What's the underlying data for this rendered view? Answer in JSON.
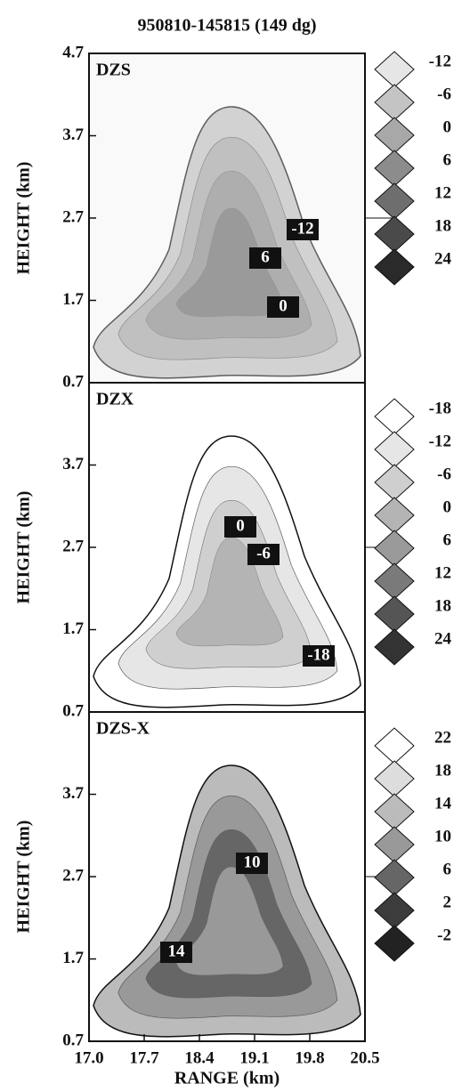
{
  "header": {
    "title": "950810-145815 (149 dg)"
  },
  "chart_data": [
    {
      "type": "contour",
      "title": "DZS",
      "ylabel": "HEIGHT (km)",
      "ylim": [
        0.7,
        4.7
      ],
      "yticks": [
        0.7,
        1.7,
        2.7,
        3.7,
        4.7
      ],
      "levels": [
        -12,
        -6,
        0,
        6,
        12,
        18,
        24
      ],
      "level_colors": [
        "#e6e6e6",
        "#c4c4c4",
        "#a8a8a8",
        "#8c8c8c",
        "#6e6e6e",
        "#4a4a4a",
        "#2a2a2a"
      ],
      "contour_labels": [
        -12,
        6,
        0
      ]
    },
    {
      "type": "contour",
      "title": "DZX",
      "ylabel": "HEIGHT (km)",
      "ylim": [
        0.7,
        4.7
      ],
      "yticks": [
        0.7,
        1.7,
        2.7,
        3.7
      ],
      "levels": [
        -18,
        -12,
        -6,
        0,
        6,
        12,
        18,
        24
      ],
      "level_colors": [
        "#ffffff",
        "#e6e6e6",
        "#cfcfcf",
        "#b4b4b4",
        "#9a9a9a",
        "#7a7a7a",
        "#555555",
        "#333333"
      ],
      "contour_labels": [
        0,
        -6,
        -18
      ]
    },
    {
      "type": "contour",
      "title": "DZS-X",
      "ylabel": "HEIGHT (km)",
      "xlabel": "RANGE (km)",
      "ylim": [
        0.7,
        4.7
      ],
      "yticks": [
        0.7,
        1.7,
        2.7,
        3.7
      ],
      "xlim": [
        17,
        20.5
      ],
      "xticks": [
        {
          "value": 17,
          "label": "17.0"
        },
        17.7,
        18.4,
        19.1,
        19.8,
        20.5
      ],
      "levels": [
        22,
        18,
        14,
        10,
        6,
        2,
        -2
      ],
      "level_colors": [
        "#ffffff",
        "#dddddd",
        "#bbbbbb",
        "#999999",
        "#666666",
        "#3c3c3c",
        "#222222"
      ],
      "contour_labels": [
        10,
        14
      ]
    }
  ]
}
